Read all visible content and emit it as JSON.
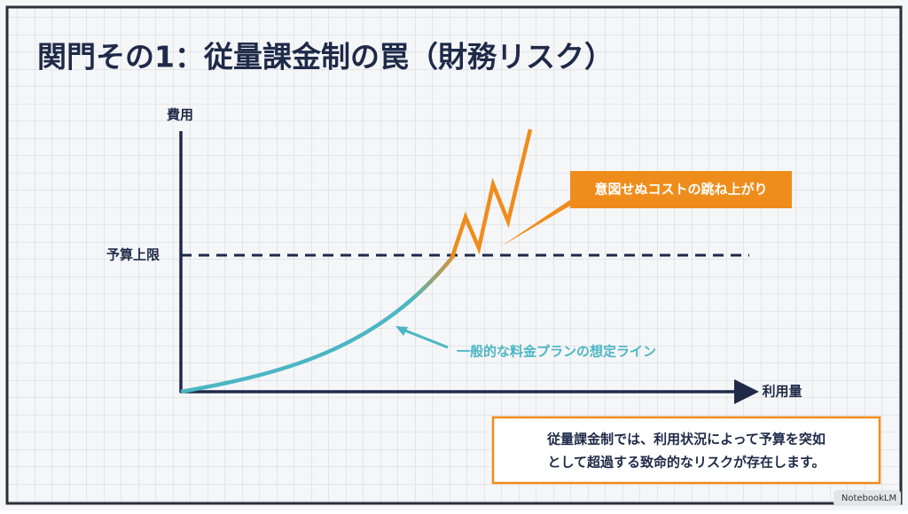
{
  "header": {
    "title": "関門その1：従量課金制の罠（財務リスク）"
  },
  "axes": {
    "y_label": "費用",
    "x_label": "利用量"
  },
  "budget_line": {
    "label": "予算上限"
  },
  "annotations": {
    "spike": "意図せぬコストの跳ね上がり",
    "expected": "一般的な料金プランの想定ライン"
  },
  "note": {
    "lines": [
      "従量課金制では、利用状況によって予算を突如",
      "として超過する致命的なリスクが存在します。"
    ]
  },
  "watermark": "NotebookLM"
}
